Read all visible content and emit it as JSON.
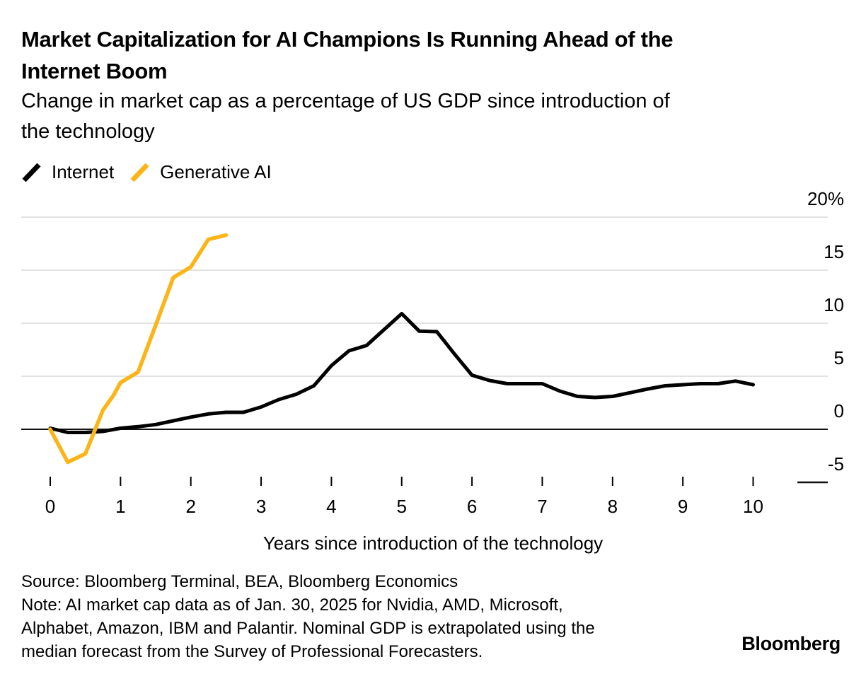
{
  "header": {
    "title_lines": [
      "Market Capitalization for AI Champions Is Running Ahead of the",
      "Internet Boom"
    ],
    "subtitle_lines": [
      "Change in market cap as a percentage of US GDP since introduction of",
      "the technology"
    ]
  },
  "chart_data": {
    "type": "line",
    "title": "Market Capitalization for AI Champions Is Running Ahead of the Internet Boom",
    "subtitle": "Change in market cap as a percentage of US GDP since introduction of the technology",
    "xlabel": "Years since introduction of the technology",
    "ylabel": "",
    "xlim": [
      0,
      10
    ],
    "ylim": [
      -5,
      20
    ],
    "grid": "horizontal",
    "legend_position": "top-left",
    "x_ticks": [
      "0",
      "1",
      "2",
      "3",
      "4",
      "5",
      "6",
      "7",
      "8",
      "9",
      "10"
    ],
    "y_ticks": [
      {
        "value": 20,
        "label": "20%"
      },
      {
        "value": 15,
        "label": "15"
      },
      {
        "value": 10,
        "label": "10"
      },
      {
        "value": 5,
        "label": "5"
      },
      {
        "value": 0,
        "label": "0"
      },
      {
        "value": -5,
        "label": "-5"
      }
    ],
    "series": [
      {
        "name": "Internet",
        "color": "#000000",
        "points": [
          [
            0,
            0.1
          ],
          [
            0.25,
            -0.3
          ],
          [
            0.5,
            -0.3
          ],
          [
            0.75,
            -0.2
          ],
          [
            1,
            0.1
          ],
          [
            1.25,
            0.25
          ],
          [
            1.5,
            0.45
          ],
          [
            1.75,
            0.8
          ],
          [
            2,
            1.15
          ],
          [
            2.25,
            1.45
          ],
          [
            2.5,
            1.6
          ],
          [
            2.75,
            1.6
          ],
          [
            3,
            2.1
          ],
          [
            3.25,
            2.8
          ],
          [
            3.5,
            3.3
          ],
          [
            3.75,
            4.1
          ],
          [
            4,
            6.0
          ],
          [
            4.25,
            7.4
          ],
          [
            4.5,
            7.9
          ],
          [
            4.75,
            9.4
          ],
          [
            5,
            10.9
          ],
          [
            5.25,
            9.25
          ],
          [
            5.5,
            9.2
          ],
          [
            5.75,
            7.1
          ],
          [
            6,
            5.1
          ],
          [
            6.25,
            4.6
          ],
          [
            6.5,
            4.3
          ],
          [
            6.75,
            4.3
          ],
          [
            7,
            4.3
          ],
          [
            7.25,
            3.6
          ],
          [
            7.5,
            3.1
          ],
          [
            7.75,
            3.0
          ],
          [
            8,
            3.1
          ],
          [
            8.25,
            3.45
          ],
          [
            8.5,
            3.8
          ],
          [
            8.75,
            4.1
          ],
          [
            9,
            4.2
          ],
          [
            9.25,
            4.3
          ],
          [
            9.5,
            4.3
          ],
          [
            9.75,
            4.55
          ],
          [
            10,
            4.2
          ]
        ]
      },
      {
        "name": "Generative AI",
        "color": "#FBB519",
        "points": [
          [
            0,
            0
          ],
          [
            0.25,
            -3.1
          ],
          [
            0.5,
            -2.3
          ],
          [
            0.75,
            1.8
          ],
          [
            0.9,
            3.2
          ],
          [
            1,
            4.4
          ],
          [
            1.25,
            5.4
          ],
          [
            1.5,
            9.8
          ],
          [
            1.75,
            14.3
          ],
          [
            2,
            15.3
          ],
          [
            2.25,
            17.9
          ],
          [
            2.5,
            18.3
          ]
        ]
      }
    ]
  },
  "footer": {
    "source": "Source: Bloomberg Terminal, BEA, Bloomberg Economics",
    "note_lines": [
      "Note: AI market cap data as of Jan. 30, 2025 for Nvidia, AMD, Microsoft,",
      "Alphabet, Amazon, IBM and Palantir. Nominal GDP is extrapolated using the",
      "median forecast from the Survey of Professional Forecasters."
    ],
    "brand": "Bloomberg"
  },
  "colors": {
    "accent_yellow": "#FBB519",
    "line_black": "#000000",
    "grid_gray": "#D8D8D8",
    "axis_black": "#111111",
    "background": "#FFFFFF"
  }
}
